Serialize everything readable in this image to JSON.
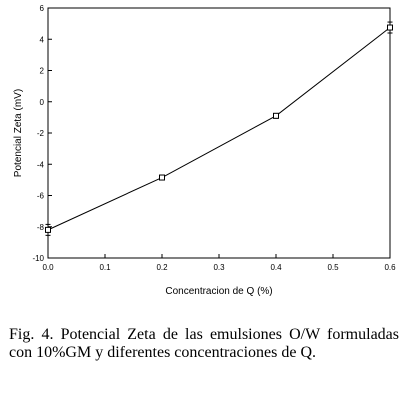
{
  "chart_data": {
    "type": "line",
    "xlabel": "Concentracion de Q   (%)",
    "ylabel": "Potencial  Zeta   (mV)",
    "xlim": [
      0.0,
      0.6
    ],
    "ylim": [
      -10,
      6
    ],
    "x_ticks": [
      0.0,
      0.1,
      0.2,
      0.3,
      0.4,
      0.5,
      0.6
    ],
    "x_tick_labels": [
      "0.0",
      "0.1",
      "0.2",
      "0.3",
      "0.4",
      "0.5",
      "0.6"
    ],
    "y_ticks": [
      -10,
      -8,
      -6,
      -4,
      -2,
      0,
      2,
      4,
      6
    ],
    "y_tick_labels": [
      "-10",
      "-8",
      "-6",
      "-4",
      "-2",
      "0",
      "2",
      "4",
      "6"
    ],
    "series": [
      {
        "x": [
          0.0,
          0.2,
          0.4,
          0.6
        ],
        "y": [
          -8.2,
          -4.85,
          -0.9,
          4.75
        ],
        "error": [
          0.35,
          0.15,
          0.15,
          0.35
        ],
        "marker": "open-square",
        "color": "#000000"
      }
    ],
    "grid": false,
    "legend": "none"
  },
  "caption": "Fig. 4. Potencial Zeta de las emulsiones O/W formuladas con 10%GM y diferentes concentraciones de Q."
}
